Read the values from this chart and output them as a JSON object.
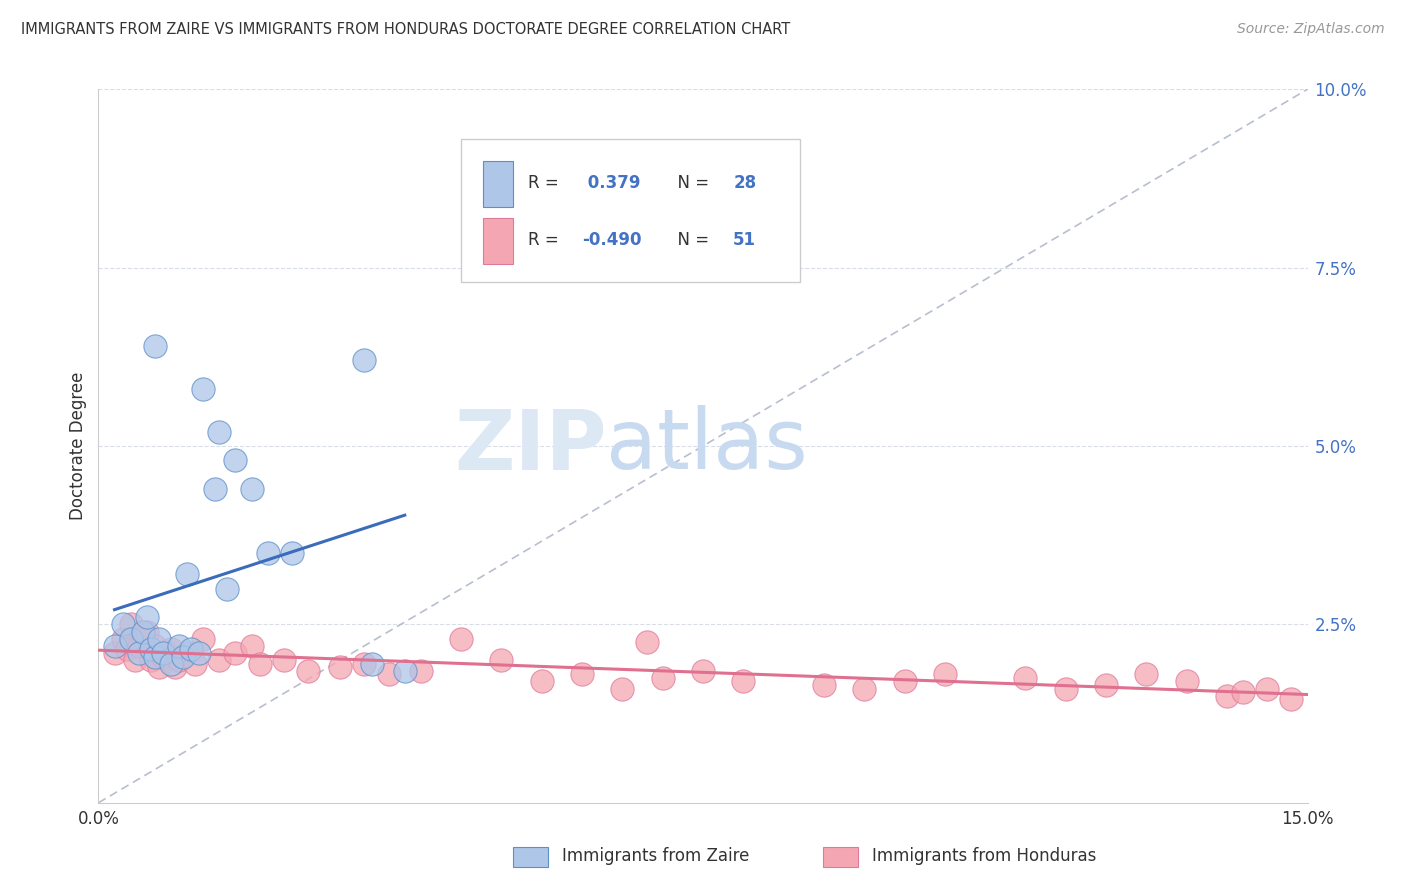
{
  "title": "IMMIGRANTS FROM ZAIRE VS IMMIGRANTS FROM HONDURAS DOCTORATE DEGREE CORRELATION CHART",
  "source": "Source: ZipAtlas.com",
  "ylabel": "Doctorate Degree",
  "xlim": [
    0.0,
    15.0
  ],
  "ylim": [
    0.0,
    10.0
  ],
  "yticks": [
    0.0,
    2.5,
    5.0,
    7.5,
    10.0
  ],
  "ytick_labels": [
    "",
    "2.5%",
    "5.0%",
    "7.5%",
    "10.0%"
  ],
  "xtick_labels": [
    "0.0%",
    "",
    "",
    "15.0%"
  ],
  "zaire_color": "#aec6e8",
  "honduras_color": "#f4a7b2",
  "zaire_edge_color": "#5b8fc9",
  "honduras_edge_color": "#e07a9a",
  "zaire_line_color": "#3b6bbb",
  "honduras_line_color": "#e07090",
  "diagonal_line_color": "#b0b8c8",
  "background_color": "#ffffff",
  "grid_color": "#d8dde8",
  "watermark_color": "#dde8f5",
  "zaire_R": "0.379",
  "zaire_N": "28",
  "honduras_R": "-0.490",
  "honduras_N": "51",
  "zaire_points_x": [
    3.3,
    0.7,
    1.3,
    1.5,
    1.7,
    1.9,
    2.1,
    1.1,
    1.6,
    2.4,
    0.2,
    0.3,
    0.4,
    0.5,
    0.55,
    0.6,
    0.65,
    0.7,
    0.75,
    0.8,
    0.9,
    1.0,
    1.05,
    1.15,
    1.25,
    3.4,
    3.8,
    1.45
  ],
  "zaire_points_y": [
    6.2,
    6.4,
    5.8,
    5.2,
    4.8,
    4.4,
    3.5,
    3.2,
    3.0,
    3.5,
    2.2,
    2.5,
    2.3,
    2.1,
    2.4,
    2.6,
    2.15,
    2.05,
    2.3,
    2.1,
    1.95,
    2.2,
    2.05,
    2.15,
    2.1,
    1.95,
    1.85,
    4.4
  ],
  "honduras_points_x": [
    0.2,
    0.3,
    0.35,
    0.4,
    0.45,
    0.5,
    0.55,
    0.6,
    0.65,
    0.7,
    0.75,
    0.8,
    0.85,
    0.9,
    0.95,
    1.0,
    1.1,
    1.2,
    1.3,
    1.5,
    1.7,
    1.9,
    2.0,
    2.3,
    2.6,
    3.0,
    3.3,
    3.6,
    4.0,
    4.5,
    5.0,
    5.5,
    6.0,
    6.5,
    7.0,
    7.5,
    8.0,
    9.0,
    9.5,
    10.0,
    10.5,
    11.5,
    12.0,
    12.5,
    13.0,
    13.5,
    14.0,
    14.2,
    14.5,
    14.8,
    6.8
  ],
  "honduras_points_y": [
    2.1,
    2.3,
    2.15,
    2.5,
    2.0,
    2.2,
    2.3,
    2.4,
    2.0,
    2.2,
    1.9,
    2.05,
    2.1,
    2.15,
    1.9,
    2.0,
    2.1,
    1.95,
    2.3,
    2.0,
    2.1,
    2.2,
    1.95,
    2.0,
    1.85,
    1.9,
    1.95,
    1.8,
    1.85,
    2.3,
    2.0,
    1.7,
    1.8,
    1.6,
    1.75,
    1.85,
    1.7,
    1.65,
    1.6,
    1.7,
    1.8,
    1.75,
    1.6,
    1.65,
    1.8,
    1.7,
    1.5,
    1.55,
    1.6,
    1.45,
    2.25
  ]
}
